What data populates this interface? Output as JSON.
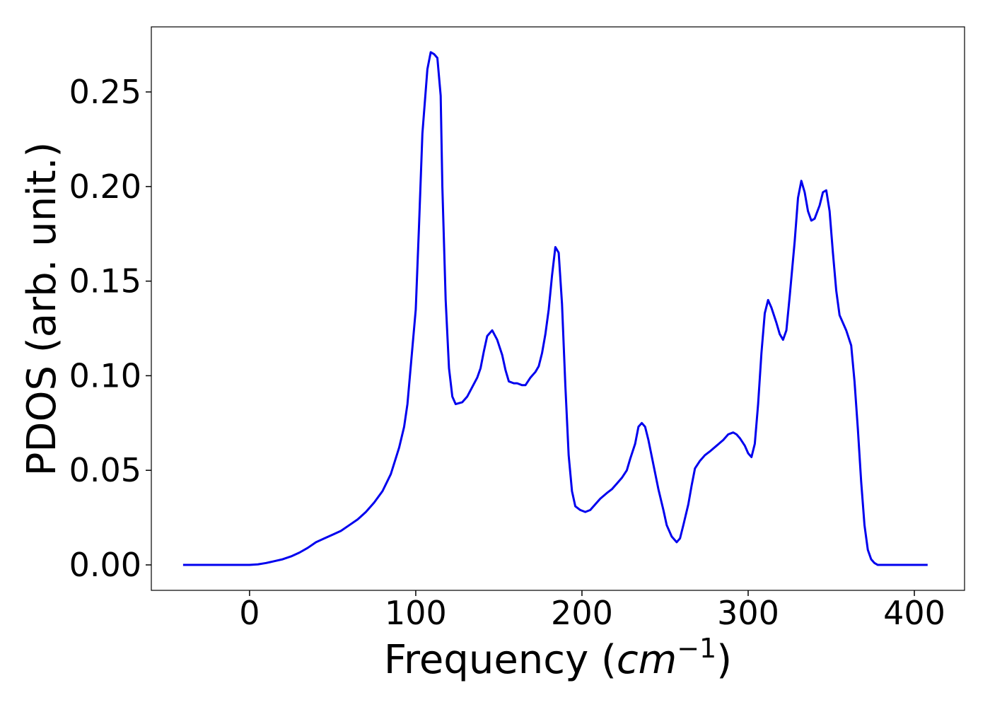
{
  "chart_data": {
    "type": "line",
    "xlabel": [
      "Frequency (",
      "cm",
      "−1",
      ")"
    ],
    "ylabel": "PDOS (arb. unit.)",
    "xlim": [
      -59.1,
      430.2
    ],
    "ylim": [
      -0.01345,
      0.2844
    ],
    "xticks": [
      0,
      100,
      200,
      300,
      400
    ],
    "yticks": [
      {
        "value": 0,
        "label": "0.00"
      },
      {
        "value": 0.05,
        "label": "0.05"
      },
      {
        "value": 0.1,
        "label": "0.10"
      },
      {
        "value": 0.15,
        "label": "0.15"
      },
      {
        "value": 0.2,
        "label": "0.20"
      },
      {
        "value": 0.25,
        "label": "0.25"
      }
    ],
    "grid": false,
    "x": [
      -40,
      -20,
      0,
      5,
      10,
      15,
      20,
      25,
      30,
      35,
      40,
      45,
      50,
      55,
      60,
      65,
      70,
      75,
      80,
      85,
      90,
      93,
      95,
      97,
      98,
      100,
      102,
      104,
      107,
      109,
      111,
      113,
      115,
      116,
      118,
      120,
      122,
      124,
      128,
      131,
      134,
      137,
      139,
      141,
      143,
      146,
      149,
      152,
      154,
      156,
      159,
      161,
      164,
      166,
      169,
      172,
      174,
      176,
      178,
      180,
      182,
      184,
      186,
      188,
      190,
      192,
      194,
      196,
      199,
      202,
      205,
      208,
      211,
      215,
      218,
      221,
      224,
      227,
      229,
      232,
      234,
      236,
      238,
      240,
      243,
      246,
      249,
      251,
      254,
      257,
      259,
      261,
      264,
      266,
      268,
      271,
      274,
      277,
      281,
      285,
      288,
      291,
      293,
      295,
      298,
      300,
      302,
      304,
      306,
      308,
      310,
      312,
      314,
      317,
      319,
      321,
      323,
      325,
      328,
      330,
      332,
      334,
      336,
      338,
      340,
      343,
      345,
      347,
      349,
      351,
      353,
      355,
      357,
      359,
      362,
      364,
      366,
      368,
      370,
      372,
      374,
      376,
      378,
      390,
      408
    ],
    "series": [
      {
        "name": "PDOS",
        "color": "#0000ee",
        "values": [
          0,
          0,
          0,
          0.0003,
          0.001,
          0.002,
          0.003,
          0.0045,
          0.0065,
          0.009,
          0.012,
          0.014,
          0.016,
          0.018,
          0.021,
          0.024,
          0.028,
          0.033,
          0.039,
          0.048,
          0.062,
          0.073,
          0.085,
          0.105,
          0.115,
          0.135,
          0.18,
          0.228,
          0.262,
          0.271,
          0.27,
          0.268,
          0.248,
          0.2,
          0.14,
          0.104,
          0.089,
          0.085,
          0.086,
          0.089,
          0.094,
          0.099,
          0.104,
          0.113,
          0.121,
          0.124,
          0.119,
          0.111,
          0.103,
          0.097,
          0.096,
          0.096,
          0.095,
          0.095,
          0.099,
          0.102,
          0.105,
          0.112,
          0.122,
          0.135,
          0.153,
          0.168,
          0.165,
          0.138,
          0.095,
          0.058,
          0.039,
          0.031,
          0.029,
          0.028,
          0.029,
          0.032,
          0.035,
          0.038,
          0.04,
          0.043,
          0.046,
          0.05,
          0.056,
          0.064,
          0.073,
          0.075,
          0.073,
          0.066,
          0.053,
          0.04,
          0.029,
          0.021,
          0.015,
          0.012,
          0.014,
          0.021,
          0.032,
          0.042,
          0.051,
          0.055,
          0.058,
          0.06,
          0.063,
          0.066,
          0.069,
          0.07,
          0.069,
          0.067,
          0.063,
          0.059,
          0.057,
          0.064,
          0.085,
          0.112,
          0.133,
          0.14,
          0.136,
          0.128,
          0.122,
          0.119,
          0.124,
          0.142,
          0.171,
          0.194,
          0.203,
          0.197,
          0.187,
          0.182,
          0.183,
          0.19,
          0.197,
          0.198,
          0.187,
          0.165,
          0.145,
          0.132,
          0.128,
          0.124,
          0.116,
          0.097,
          0.072,
          0.044,
          0.021,
          0.008,
          0.003,
          0.001,
          0,
          0,
          0
        ]
      }
    ]
  }
}
